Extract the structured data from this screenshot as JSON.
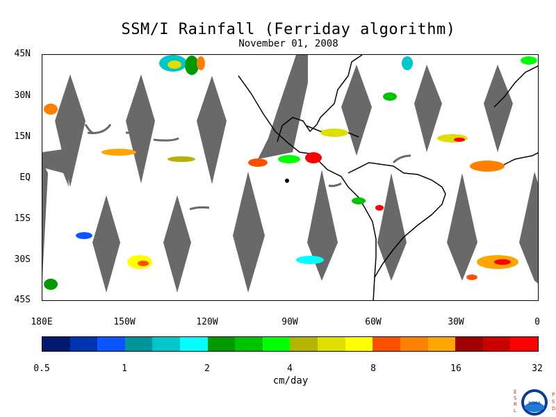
{
  "title": "SSM/I Rainfall (Ferriday algorithm)",
  "date": "November 01, 2008",
  "map": {
    "lat_labels": [
      "45N",
      "30N",
      "15N",
      "EQ",
      "15S",
      "30S",
      "45S"
    ],
    "lon_labels": [
      "180E",
      "150W",
      "120W",
      "90W",
      "60W",
      "30W",
      "0"
    ],
    "lon_range": [
      -180,
      0
    ],
    "lat_range": [
      -45,
      45
    ],
    "swath_color": "#696969",
    "coast_color": "#000000"
  },
  "colorbar": {
    "units": "cm/day",
    "labels": [
      "0.5",
      "1",
      "2",
      "4",
      "8",
      "16",
      "32"
    ],
    "colors": [
      "#001a70",
      "#0033b0",
      "#0a55ff",
      "#00959a",
      "#00c5c9",
      "#00ffff",
      "#009a00",
      "#00c400",
      "#00ff00",
      "#b4b400",
      "#dede00",
      "#ffff00",
      "#ff5000",
      "#ff8000",
      "#ffa500",
      "#a00000",
      "#cd0000",
      "#ff0000"
    ]
  },
  "logo": {
    "letters_left": [
      "E",
      "S",
      "R",
      "L"
    ],
    "letters_right": [
      "P",
      "S",
      "D"
    ],
    "badge_text": "NOAA"
  }
}
